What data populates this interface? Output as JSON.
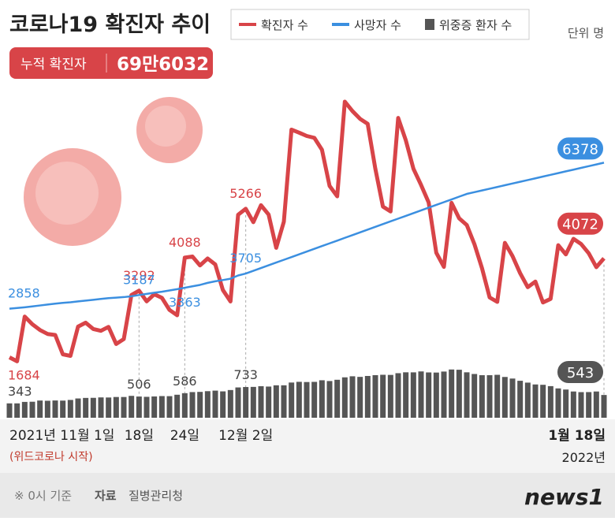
{
  "header": {
    "title": "코로나19 확진자 추이",
    "total_label": "누적 확진자",
    "total_value": "69만6032",
    "unit": "단위 명"
  },
  "chart_data": {
    "type": "line-bar",
    "categories": [
      "2021년 11월 1일",
      null,
      null,
      null,
      null,
      null,
      null,
      null,
      null,
      null,
      null,
      null,
      null,
      null,
      null,
      null,
      null,
      "18일",
      null,
      null,
      null,
      null,
      null,
      "24일",
      null,
      null,
      null,
      null,
      null,
      null,
      null,
      "12월 2일",
      null,
      null,
      null,
      null,
      null,
      null,
      null,
      null,
      null,
      null,
      null,
      null,
      null,
      null,
      null,
      null,
      null,
      null,
      null,
      null,
      null,
      null,
      null,
      null,
      null,
      null,
      null,
      null,
      null,
      null,
      null,
      null,
      null,
      null,
      null,
      null,
      null,
      null,
      null,
      null,
      null,
      null,
      null,
      null,
      null,
      null,
      "1월 18일"
    ],
    "year_label": "2022년",
    "annotation": "(위드코로나 시작)",
    "labeled": [
      0,
      17,
      23,
      31,
      78
    ],
    "ylim": [
      0,
      8400
    ],
    "y2lim": [
      0,
      1100
    ],
    "series": [
      {
        "name": "확진자 수",
        "color": "#d84448",
        "values": [
          1684,
          1589,
          2667,
          2482,
          2344,
          2248,
          2224,
          1758,
          1719,
          2425,
          2520,
          2368,
          2324,
          2419,
          2006,
          2125,
          3187,
          3292,
          3034,
          3206,
          3120,
          2827,
          2699,
          4088,
          4116,
          3901,
          4068,
          3925,
          3308,
          3032,
          5123,
          5266,
          4944,
          5352,
          5128,
          4325,
          4954,
          7175,
          7102,
          7022,
          6977,
          6689,
          5817,
          5567,
          7850,
          7622,
          7435,
          7314,
          6236,
          5318,
          5202,
          7456,
          6919,
          6233,
          5842,
          5419,
          4207,
          3865,
          5409,
          5037,
          4875,
          4416,
          3833,
          3129,
          3022,
          4444,
          4126,
          3714,
          3376,
          3511,
          3007,
          3094,
          4388,
          4167,
          4542,
          4418,
          4194,
          3859,
          4072
        ]
      },
      {
        "name": "사망자 수",
        "color": "#3b8fe0",
        "values": [
          2858,
          2874,
          2892,
          2913,
          2935,
          2958,
          2979,
          2999,
          3012,
          3033,
          3053,
          3071,
          3092,
          3113,
          3125,
          3137,
          3158,
          3187,
          3215,
          3243,
          3267,
          3298,
          3328,
          3363,
          3397,
          3431,
          3480,
          3518,
          3548,
          3580,
          3658,
          3705,
          3771,
          3837,
          3904,
          3970,
          4036,
          4102,
          4168,
          4235,
          4301,
          4367,
          4433,
          4499,
          4566,
          4632,
          4698,
          4764,
          4830,
          4897,
          4963,
          5029,
          5095,
          5161,
          5228,
          5294,
          5360,
          5426,
          5492,
          5559,
          5625,
          5667,
          5709,
          5750,
          5792,
          5834,
          5876,
          5918,
          5959,
          6001,
          6043,
          6085,
          6127,
          6169,
          6210,
          6252,
          6294,
          6336,
          6378
        ]
      },
      {
        "name": "위중증 환자 수",
        "color": "#555555",
        "axis": "y2",
        "values": [
          343,
          343,
          378,
          382,
          411,
          405,
          412,
          409,
          425,
          460,
          473,
          475,
          485,
          483,
          495,
          495,
          522,
          506,
          499,
          508,
          517,
          515,
          549,
          586,
          612,
          617,
          634,
          647,
          629,
          661,
          723,
          733,
          736,
          752,
          744,
          774,
          774,
          840,
          857,
          852,
          856,
          894,
          876,
          906,
          964,
          989,
          975,
          997,
          1016,
          1025,
          1022,
          1063,
          1084,
          1083,
          1105,
          1081,
          1078,
          1102,
          1151,
          1145,
          1084,
          1044,
          1015,
          1015,
          1024,
          973,
          935,
          882,
          838,
          794,
          786,
          754,
          700,
          673,
          626,
          611,
          612,
          626,
          543
        ]
      }
    ]
  },
  "footer": {
    "note": "※ 0시 기준",
    "source_label": "자료",
    "source": "질병관리청",
    "logo": "news1"
  }
}
